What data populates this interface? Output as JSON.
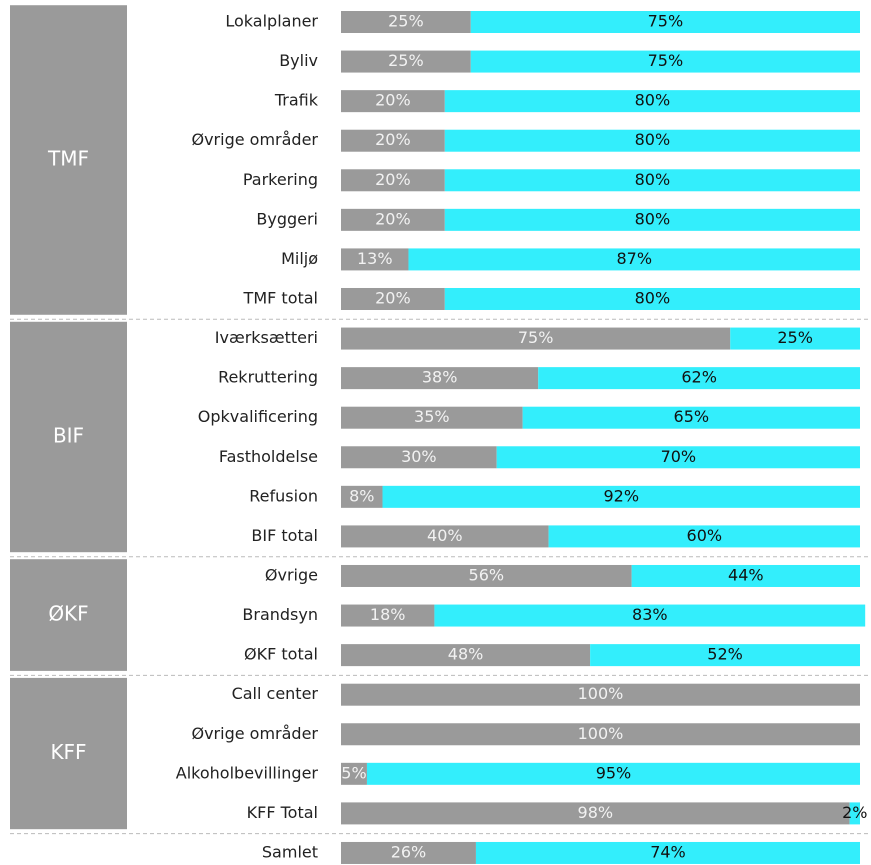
{
  "chart_data": {
    "type": "bar",
    "orientation": "horizontal",
    "stacked": true,
    "colors": [
      "#9a9a9a",
      "#33eefc"
    ],
    "xlim": [
      0,
      100
    ],
    "groups": [
      {
        "label": "TMF",
        "categories": [
          "Lokalplaner",
          "Byliv",
          "Trafik",
          "Øvrige områder",
          "Parkering",
          "Byggeri",
          "Miljø",
          "TMF total"
        ],
        "series": [
          {
            "values": [
              25,
              25,
              20,
              20,
              20,
              20,
              13,
              20
            ],
            "value_labels": [
              "25%",
              "25%",
              "20%",
              "20%",
              "20%",
              "20%",
              "13%",
              "20%"
            ]
          },
          {
            "values": [
              75,
              75,
              80,
              80,
              80,
              80,
              87,
              80
            ],
            "value_labels": [
              "75%",
              "75%",
              "80%",
              "80%",
              "80%",
              "80%",
              "87%",
              "80%"
            ]
          }
        ]
      },
      {
        "label": "BIF",
        "categories": [
          "Iværksætteri",
          "Rekruttering",
          "Opkvalificering",
          "Fastholdelse",
          "Refusion",
          "BIF total"
        ],
        "series": [
          {
            "values": [
              75,
              38,
              35,
              30,
              8,
              40
            ],
            "value_labels": [
              "75%",
              "38%",
              "35%",
              "30%",
              "8%",
              "40%"
            ]
          },
          {
            "values": [
              25,
              62,
              65,
              70,
              92,
              60
            ],
            "value_labels": [
              "25%",
              "62%",
              "65%",
              "70%",
              "92%",
              "60%"
            ]
          }
        ]
      },
      {
        "label": "ØKF",
        "categories": [
          "Øvrige",
          "Brandsyn",
          "ØKF total"
        ],
        "series": [
          {
            "values": [
              56,
              18,
              48
            ],
            "value_labels": [
              "56%",
              "18%",
              "48%"
            ]
          },
          {
            "values": [
              44,
              83,
              52
            ],
            "value_labels": [
              "44%",
              "83%",
              "52%"
            ]
          }
        ]
      },
      {
        "label": "KFF",
        "categories": [
          "Call center",
          "Øvrige områder",
          "Alkoholbevillinger",
          "KFF Total"
        ],
        "series": [
          {
            "values": [
              100,
              100,
              5,
              98
            ],
            "value_labels": [
              "100%",
              "100%",
              "5%",
              "98%"
            ]
          },
          {
            "values": [
              null,
              null,
              95,
              2
            ],
            "value_labels": [
              null,
              null,
              "95%",
              "2%"
            ]
          }
        ]
      },
      {
        "categories": [
          "Samlet"
        ],
        "series": [
          {
            "values": [
              26
            ],
            "value_labels": [
              "26%"
            ]
          },
          {
            "values": [
              74
            ],
            "value_labels": [
              "74%"
            ]
          }
        ]
      }
    ]
  }
}
